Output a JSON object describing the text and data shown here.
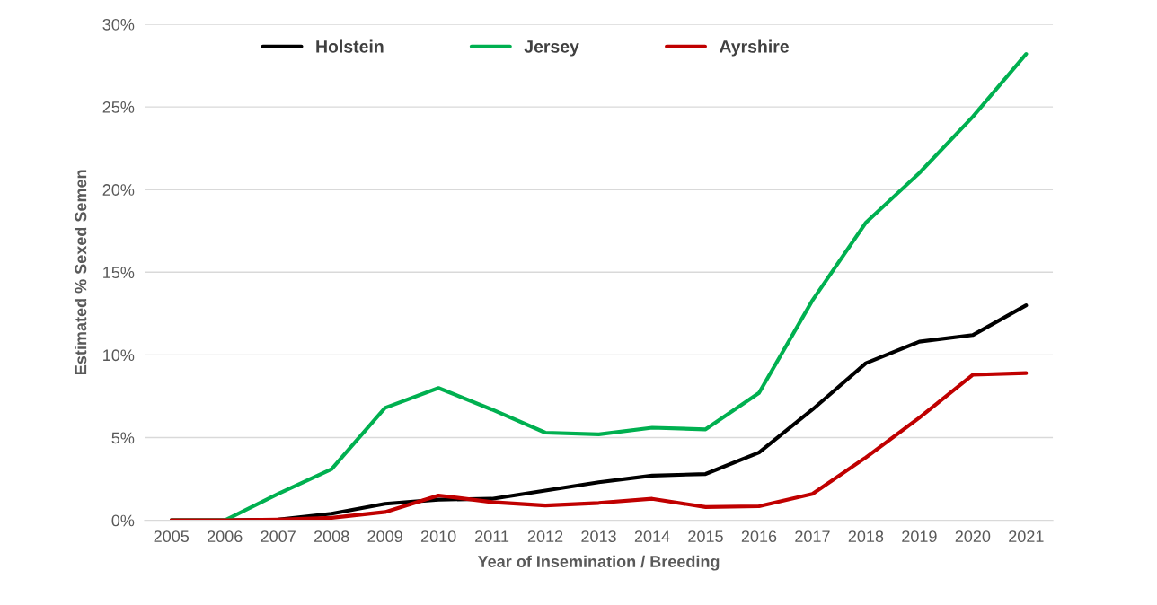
{
  "chart_data": {
    "type": "line",
    "xlabel": "Year of Insemination / Breeding",
    "ylabel": "Estimated % Sexed Semen",
    "categories": [
      "2005",
      "2006",
      "2007",
      "2008",
      "2009",
      "2010",
      "2011",
      "2012",
      "2013",
      "2014",
      "2015",
      "2016",
      "2017",
      "2018",
      "2019",
      "2020",
      "2021"
    ],
    "series": [
      {
        "name": "Holstein",
        "color": "#000000",
        "values": [
          0,
          0,
          0.05,
          0.4,
          1.0,
          1.25,
          1.3,
          1.8,
          2.3,
          2.7,
          2.8,
          4.1,
          6.7,
          9.5,
          10.8,
          11.2,
          13.0
        ]
      },
      {
        "name": "Jersey",
        "color": "#00b050",
        "values": [
          0,
          0,
          1.6,
          3.1,
          6.8,
          8.0,
          6.7,
          5.3,
          5.2,
          5.6,
          5.5,
          7.7,
          13.3,
          18.0,
          21.0,
          24.4,
          28.2
        ]
      },
      {
        "name": "Ayrshire",
        "color": "#c00000",
        "values": [
          0,
          0,
          0.05,
          0.15,
          0.5,
          1.5,
          1.1,
          0.9,
          1.05,
          1.3,
          0.8,
          0.85,
          1.6,
          3.8,
          6.2,
          8.8,
          8.9
        ]
      }
    ],
    "ylim": [
      0,
      30
    ],
    "yticks": [
      {
        "value": 0,
        "label": "0%"
      },
      {
        "value": 5,
        "label": "5%"
      },
      {
        "value": 10,
        "label": "10%"
      },
      {
        "value": 15,
        "label": "15%"
      },
      {
        "value": 20,
        "label": "20%"
      },
      {
        "value": 25,
        "label": "25%"
      },
      {
        "value": 30,
        "label": "30%"
      }
    ],
    "grid": "y",
    "legend": "top",
    "marker": "none",
    "line_style": "solid"
  }
}
